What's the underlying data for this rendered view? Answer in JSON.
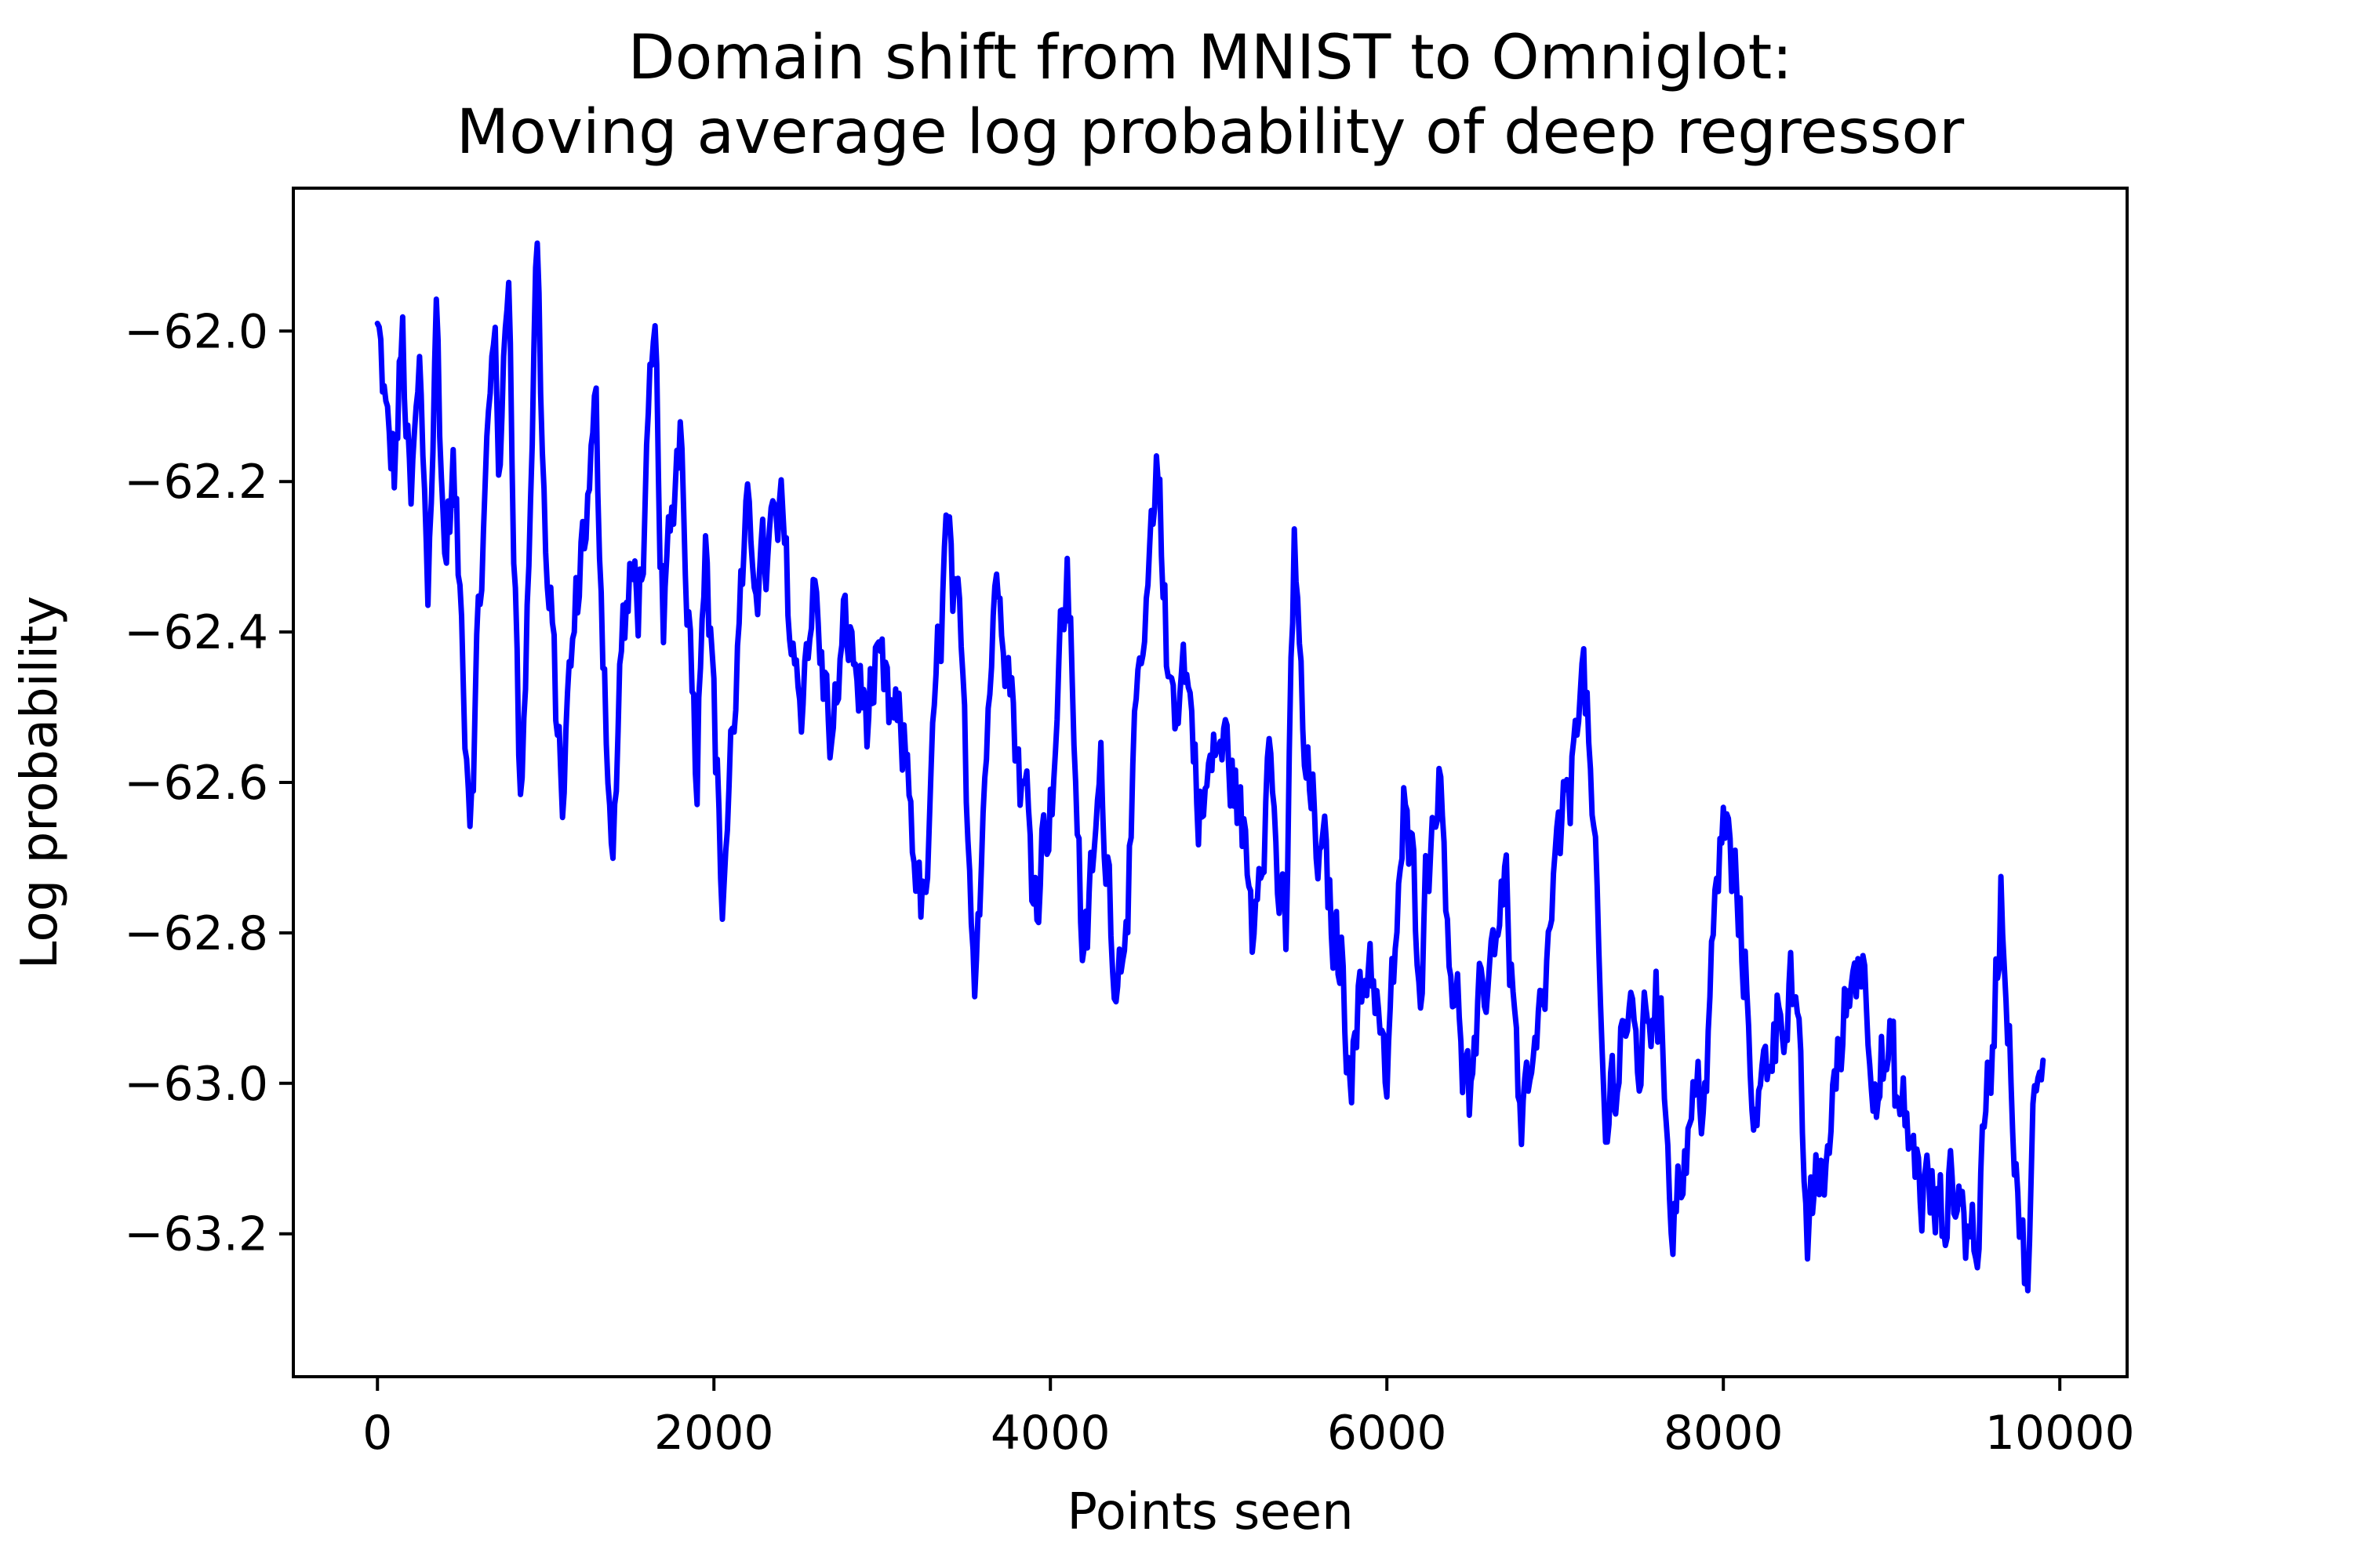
{
  "chart_data": {
    "type": "line",
    "title_lines": [
      "Domain shift from MNIST to Omniglot:",
      "Moving average log probability of deep regressor"
    ],
    "xlabel": "Points seen",
    "ylabel": "Log probability",
    "xlim": [
      -500,
      10400
    ],
    "ylim": [
      -63.39,
      -61.81
    ],
    "x_ticks": [
      0,
      2000,
      4000,
      6000,
      8000,
      10000
    ],
    "x_tick_labels": [
      "0",
      "2000",
      "4000",
      "6000",
      "8000",
      "10000"
    ],
    "y_ticks": [
      -62.0,
      -62.2,
      -62.4,
      -62.6,
      -62.8,
      -63.0,
      -63.2
    ],
    "y_tick_labels": [
      "−62.0",
      "−62.2",
      "−62.4",
      "−62.6",
      "−62.8",
      "−63.0",
      "−63.2"
    ],
    "grid": false,
    "legend": "none",
    "series_color": "#0000ff",
    "x_step": 10,
    "anchors": [
      [
        0,
        -62.0
      ],
      [
        50,
        -62.15
      ],
      [
        100,
        -62.2
      ],
      [
        150,
        -62.02
      ],
      [
        200,
        -62.25
      ],
      [
        250,
        -62.05
      ],
      [
        300,
        -62.3
      ],
      [
        350,
        -61.95
      ],
      [
        400,
        -62.3
      ],
      [
        450,
        -62.2
      ],
      [
        550,
        -62.65
      ],
      [
        650,
        -62.2
      ],
      [
        700,
        -61.98
      ],
      [
        730,
        -62.2
      ],
      [
        780,
        -61.9
      ],
      [
        850,
        -62.63
      ],
      [
        900,
        -62.3
      ],
      [
        950,
        -61.88
      ],
      [
        1000,
        -62.3
      ],
      [
        1100,
        -62.62
      ],
      [
        1200,
        -62.35
      ],
      [
        1300,
        -62.15
      ],
      [
        1400,
        -62.72
      ],
      [
        1450,
        -62.4
      ],
      [
        1550,
        -62.35
      ],
      [
        1600,
        -62.22
      ],
      [
        1650,
        -62.05
      ],
      [
        1700,
        -62.4
      ],
      [
        1800,
        -62.1
      ],
      [
        1900,
        -62.55
      ],
      [
        1950,
        -62.2
      ],
      [
        2050,
        -62.75
      ],
      [
        2150,
        -62.4
      ],
      [
        2200,
        -62.3
      ],
      [
        2300,
        -62.3
      ],
      [
        2400,
        -62.25
      ],
      [
        2500,
        -62.45
      ],
      [
        2600,
        -62.35
      ],
      [
        2700,
        -62.55
      ],
      [
        2800,
        -62.4
      ],
      [
        2900,
        -62.5
      ],
      [
        3000,
        -62.5
      ],
      [
        3150,
        -62.6
      ],
      [
        3250,
        -62.8
      ],
      [
        3380,
        -62.25
      ],
      [
        3450,
        -62.4
      ],
      [
        3550,
        -62.82
      ],
      [
        3650,
        -62.4
      ],
      [
        3700,
        -62.3
      ],
      [
        3800,
        -62.55
      ],
      [
        3900,
        -62.7
      ],
      [
        4000,
        -62.6
      ],
      [
        4100,
        -62.3
      ],
      [
        4200,
        -62.85
      ],
      [
        4300,
        -62.6
      ],
      [
        4400,
        -62.85
      ],
      [
        4500,
        -62.6
      ],
      [
        4600,
        -62.3
      ],
      [
        4650,
        -62.2
      ],
      [
        4700,
        -62.5
      ],
      [
        4800,
        -62.45
      ],
      [
        4900,
        -62.65
      ],
      [
        5000,
        -62.55
      ],
      [
        5100,
        -62.6
      ],
      [
        5200,
        -62.78
      ],
      [
        5300,
        -62.55
      ],
      [
        5400,
        -62.85
      ],
      [
        5450,
        -62.25
      ],
      [
        5500,
        -62.55
      ],
      [
        5600,
        -62.7
      ],
      [
        5700,
        -62.8
      ],
      [
        5800,
        -62.95
      ],
      [
        5900,
        -62.8
      ],
      [
        6000,
        -63.0
      ],
      [
        6100,
        -62.65
      ],
      [
        6200,
        -62.8
      ],
      [
        6300,
        -62.55
      ],
      [
        6400,
        -62.85
      ],
      [
        6500,
        -63.05
      ],
      [
        6600,
        -62.85
      ],
      [
        6700,
        -62.7
      ],
      [
        6800,
        -63.05
      ],
      [
        6900,
        -62.95
      ],
      [
        7000,
        -62.75
      ],
      [
        7100,
        -62.6
      ],
      [
        7150,
        -62.4
      ],
      [
        7200,
        -62.55
      ],
      [
        7300,
        -63.1
      ],
      [
        7400,
        -62.9
      ],
      [
        7500,
        -62.95
      ],
      [
        7600,
        -62.85
      ],
      [
        7700,
        -63.15
      ],
      [
        7800,
        -63.05
      ],
      [
        7900,
        -62.95
      ],
      [
        8000,
        -62.65
      ],
      [
        8100,
        -62.8
      ],
      [
        8200,
        -63.05
      ],
      [
        8300,
        -62.9
      ],
      [
        8400,
        -62.85
      ],
      [
        8500,
        -63.2
      ],
      [
        8600,
        -63.1
      ],
      [
        8700,
        -62.95
      ],
      [
        8800,
        -62.8
      ],
      [
        8900,
        -62.95
      ],
      [
        9000,
        -63.0
      ],
      [
        9100,
        -63.1
      ],
      [
        9200,
        -63.15
      ],
      [
        9300,
        -63.2
      ],
      [
        9400,
        -63.15
      ],
      [
        9500,
        -63.2
      ],
      [
        9600,
        -62.95
      ],
      [
        9650,
        -62.73
      ],
      [
        9700,
        -62.95
      ],
      [
        9800,
        -63.3
      ],
      [
        9850,
        -63.05
      ],
      [
        9900,
        -63.05
      ]
    ]
  }
}
